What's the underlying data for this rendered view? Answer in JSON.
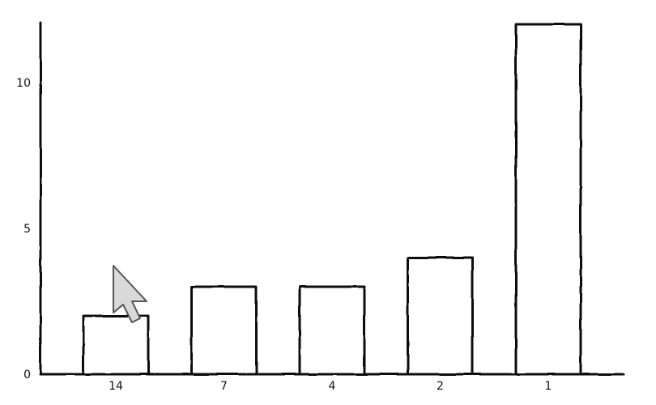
{
  "chart_data": {
    "type": "bar",
    "categories": [
      "14",
      "7",
      "4",
      "2",
      "1"
    ],
    "values": [
      2,
      3,
      3,
      4,
      12
    ],
    "title": "",
    "xlabel": "",
    "ylabel": "",
    "ylim": [
      0,
      12
    ],
    "yticks": [
      0,
      5,
      10
    ],
    "grid": false,
    "bar_fill": "#ffffff",
    "stroke_color": "#111111",
    "style": "hand-drawn sketch"
  },
  "overlay": {
    "cursor_icon": "mouse-pointer-icon"
  }
}
